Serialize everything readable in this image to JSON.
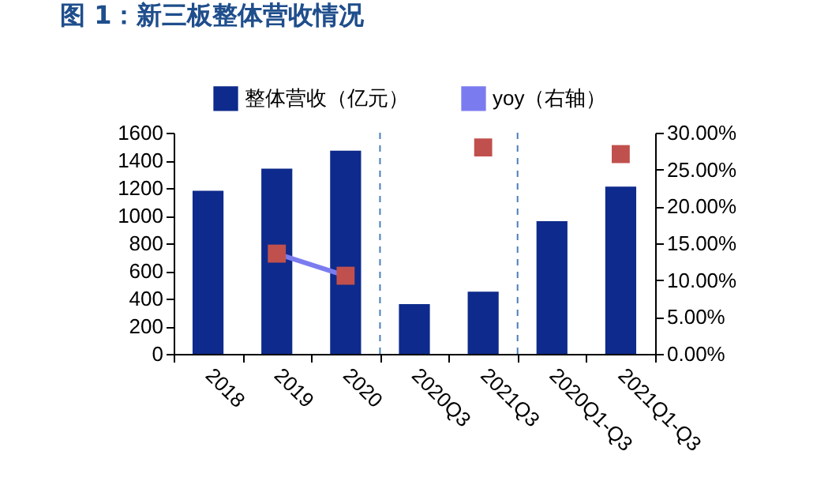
{
  "chart_data": {
    "type": "bar",
    "title": "图 1：新三板整体营收情况",
    "categories": [
      "2018",
      "2019",
      "2020",
      "2020Q3",
      "2021Q3",
      "2020Q1-Q3",
      "2021Q1-Q3"
    ],
    "series": [
      {
        "name": "整体营收（亿元）",
        "color": "#0e2a8c",
        "values": [
          1180,
          1340,
          1470,
          360,
          450,
          960,
          1210
        ]
      },
      {
        "name": "yoy（右轴）",
        "type": "line",
        "axis": "y2",
        "color": "#7b7bf0",
        "colors": [
          null,
          "#c0504d",
          "#c0504d",
          null,
          "#c0504d",
          null,
          "#c0504d"
        ],
        "marker": "square",
        "values": [
          null,
          13.6,
          10.6,
          null,
          28.0,
          null,
          27.1
        ]
      }
    ],
    "ylim": [
      0,
      1600
    ],
    "yticks": [
      0,
      200,
      400,
      600,
      800,
      1000,
      1200,
      1400,
      1600
    ],
    "y2lim": [
      0,
      30
    ],
    "y2ticks": [
      {
        "value": 0,
        "label": "0.00%"
      },
      {
        "value": 5,
        "label": "5.00%"
      },
      {
        "value": 10,
        "label": "10.00%"
      },
      {
        "value": 15,
        "label": "15.00%"
      },
      {
        "value": 20,
        "label": "20.00%"
      },
      {
        "value": 25,
        "label": "25.00%"
      },
      {
        "value": 30,
        "label": "30.00%"
      }
    ],
    "legend": "top",
    "grid": false
  }
}
